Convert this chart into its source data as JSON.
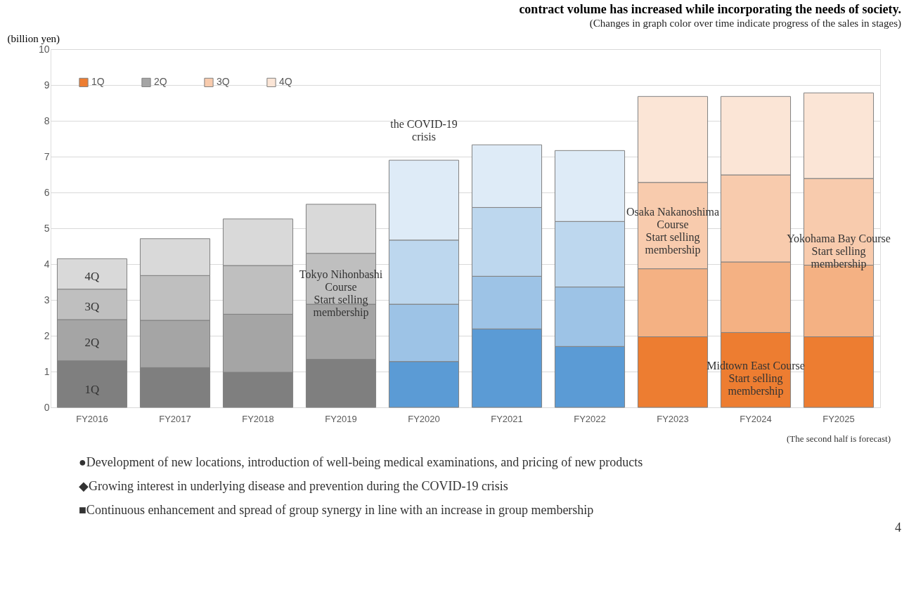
{
  "chart_data": {
    "type": "bar",
    "stacked": true,
    "title": "contract volume has increased while incorporating the needs of society.",
    "subtitle": "(Changes in graph color over time indicate progress of the sales in stages)",
    "ylabel": "(billion yen)",
    "categories": [
      "FY2016",
      "FY2017",
      "FY2018",
      "FY2019",
      "FY2020",
      "FY2021",
      "FY2022",
      "FY2023",
      "FY2024",
      "FY2025"
    ],
    "series": [
      {
        "name": "1Q",
        "color": "#ed7d31",
        "values": [
          1.3,
          1.11,
          0.98,
          1.34,
          1.28,
          2.19,
          1.7,
          1.97,
          2.09,
          1.97
        ],
        "colors": [
          "#7f7f7f",
          "#7f7f7f",
          "#7f7f7f",
          "#7f7f7f",
          "#5b9bd5",
          "#5b9bd5",
          "#5b9bd5",
          "#ed7d31",
          "#ed7d31",
          "#ed7d31"
        ]
      },
      {
        "name": "2Q",
        "color": "#a5a5a5",
        "values": [
          1.15,
          1.32,
          1.62,
          1.54,
          1.6,
          1.47,
          1.66,
          1.9,
          1.97,
          2.0
        ],
        "colors": [
          "#a5a5a5",
          "#a5a5a5",
          "#a5a5a5",
          "#a5a5a5",
          "#9dc3e6",
          "#9dc3e6",
          "#9dc3e6",
          "#f4b183",
          "#f4b183",
          "#f4b183"
        ]
      },
      {
        "name": "3Q",
        "color": "#f8cbad",
        "values": [
          0.85,
          1.25,
          1.36,
          1.42,
          1.79,
          1.92,
          1.83,
          2.41,
          2.43,
          2.42
        ],
        "colors": [
          "#bfbfbf",
          "#bfbfbf",
          "#bfbfbf",
          "#bfbfbf",
          "#bdd7ee",
          "#bdd7ee",
          "#bdd7ee",
          "#f8cbad",
          "#f8cbad",
          "#f8cbad"
        ]
      },
      {
        "name": "4Q",
        "color": "#fbe5d6",
        "values": [
          0.85,
          1.03,
          1.3,
          1.37,
          2.23,
          1.75,
          1.98,
          2.4,
          2.19,
          2.39
        ],
        "colors": [
          "#d9d9d9",
          "#d9d9d9",
          "#d9d9d9",
          "#d9d9d9",
          "#deebf7",
          "#deebf7",
          "#deebf7",
          "#fbe5d6",
          "#fbe5d6",
          "#fbe5d6"
        ]
      }
    ],
    "ylim": [
      0,
      10
    ],
    "yticks": [
      0,
      1,
      2,
      3,
      4,
      5,
      6,
      7,
      8,
      9,
      10
    ],
    "grid": "y",
    "legend": "top left",
    "annotations": [
      "1Q",
      "2Q",
      "3Q",
      "4Q",
      "the COVID-19\ncrisis",
      "Tokyo Nihonbashi\nCourse\nStart selling\nmembership",
      "Osaka Nakanoshima\nCourse\nStart selling\nmembership",
      "Midtown East Course\nStart selling\nmembership",
      "Yokohama Bay Course\nStart selling\nmembership",
      "(The second half is forecast)",
      "●Development of new locations, introduction of well-being medical examinations, and pricing of new products",
      "◆Growing interest in underlying disease and prevention during the COVID-19 crisis",
      "■Continuous enhancement and spread of group synergy in line with an increase in group membership",
      "4"
    ]
  }
}
